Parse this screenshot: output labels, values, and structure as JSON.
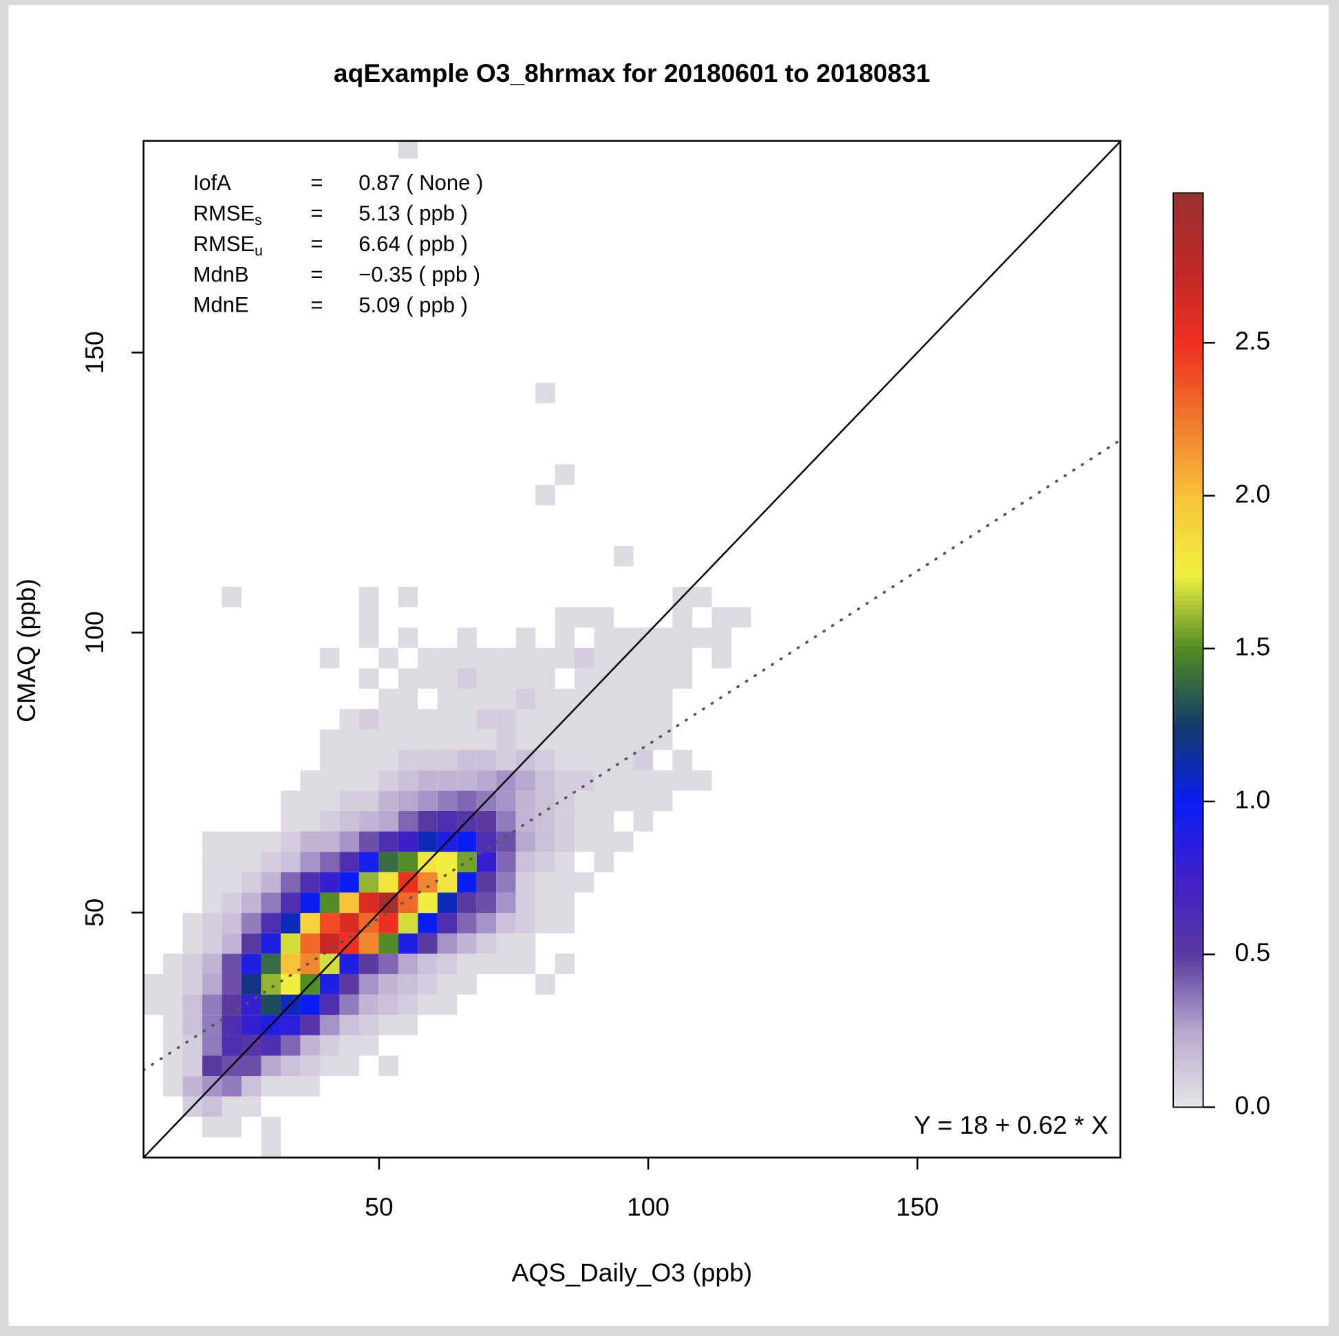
{
  "chart_data": {
    "type": "heatmap",
    "title": "aqExample O3_8hrmax for 20180601 to 20180831",
    "x_label": "AQS_Daily_O3 (ppb)",
    "y_label": "CMAQ (ppb)",
    "xlim": [
      6.25,
      187.7
    ],
    "ylim": [
      6.25,
      187.8
    ],
    "xticks": [
      50,
      100,
      150
    ],
    "yticks": [
      50,
      100,
      150
    ],
    "bin_width": 3.64,
    "x": [
      8.07,
      11.71,
      15.35,
      18.99,
      22.63,
      26.27,
      29.91,
      33.55,
      37.19,
      40.83,
      44.47,
      48.11,
      51.75,
      55.39,
      59.03,
      62.67,
      66.31,
      69.95,
      73.59,
      77.23,
      80.87,
      84.51,
      88.15,
      91.79,
      95.43,
      99.07,
      102.71,
      106.35,
      109.99,
      113.63,
      117.27
    ],
    "y": [
      8.07,
      11.71,
      15.35,
      18.99,
      22.63,
      26.27,
      29.91,
      33.55,
      37.19,
      40.83,
      44.47,
      48.11,
      51.75,
      55.39,
      59.03,
      62.67,
      66.31,
      69.95,
      73.59,
      77.23,
      80.87,
      84.51,
      88.15,
      91.79,
      95.43,
      99.07,
      102.71,
      106.35,
      113.63,
      124.55,
      128.19,
      142.75,
      186.43
    ],
    "z": [
      [
        null,
        null,
        null,
        null,
        null,
        null,
        0.05,
        null,
        null,
        null,
        null,
        null,
        null,
        null,
        null,
        null,
        null,
        null,
        null,
        null,
        null,
        null,
        null,
        null,
        null,
        null,
        null,
        null,
        null,
        null,
        null
      ],
      [
        null,
        null,
        null,
        0.05,
        0.05,
        null,
        0.05,
        null,
        null,
        null,
        null,
        null,
        null,
        null,
        null,
        null,
        null,
        null,
        null,
        null,
        null,
        null,
        null,
        null,
        null,
        null,
        null,
        null,
        null,
        null,
        null
      ],
      [
        null,
        null,
        0.1,
        0.15,
        0.05,
        0.05,
        null,
        null,
        null,
        null,
        null,
        null,
        null,
        null,
        null,
        null,
        null,
        null,
        null,
        null,
        null,
        null,
        null,
        null,
        null,
        null,
        null,
        null,
        null,
        null,
        null
      ],
      [
        null,
        0.05,
        0.2,
        0.3,
        0.35,
        0.15,
        0.05,
        0.05,
        0.05,
        null,
        null,
        null,
        null,
        null,
        null,
        null,
        null,
        null,
        null,
        null,
        null,
        null,
        null,
        null,
        null,
        null,
        null,
        null,
        null,
        null,
        null
      ],
      [
        null,
        0.05,
        0.1,
        0.5,
        0.45,
        0.45,
        0.25,
        0.15,
        0.1,
        0.05,
        0.05,
        null,
        0.05,
        null,
        null,
        null,
        null,
        null,
        null,
        null,
        null,
        null,
        null,
        null,
        null,
        null,
        null,
        null,
        null,
        null,
        null
      ],
      [
        null,
        0.05,
        0.1,
        0.35,
        0.6,
        0.55,
        0.6,
        0.4,
        0.2,
        0.1,
        0.05,
        0.05,
        null,
        null,
        null,
        null,
        null,
        null,
        null,
        null,
        null,
        null,
        null,
        null,
        null,
        null,
        null,
        null,
        null,
        null,
        null
      ],
      [
        null,
        0.05,
        0.15,
        0.35,
        0.6,
        0.8,
        0.9,
        0.85,
        0.55,
        0.3,
        0.15,
        0.1,
        0.05,
        0.05,
        null,
        null,
        null,
        null,
        null,
        null,
        null,
        null,
        null,
        null,
        null,
        null,
        null,
        null,
        null,
        null,
        null
      ],
      [
        0.05,
        0.05,
        0.15,
        0.35,
        0.5,
        0.8,
        1.3,
        1.1,
        1.0,
        0.6,
        0.35,
        0.2,
        0.15,
        0.1,
        0.05,
        0.05,
        null,
        null,
        null,
        null,
        null,
        null,
        null,
        null,
        null,
        null,
        null,
        null,
        null,
        null,
        null
      ],
      [
        0.05,
        0.05,
        0.1,
        0.25,
        0.45,
        1.2,
        1.6,
        1.75,
        1.5,
        0.9,
        0.5,
        0.3,
        0.2,
        0.15,
        0.1,
        0.05,
        0.05,
        null,
        null,
        null,
        0.05,
        null,
        null,
        null,
        null,
        null,
        null,
        null,
        null,
        null,
        null
      ],
      [
        null,
        0.05,
        0.1,
        0.2,
        0.45,
        0.9,
        1.4,
        2.0,
        2.2,
        1.7,
        0.9,
        0.5,
        0.4,
        0.25,
        0.15,
        0.1,
        0.05,
        0.05,
        0.05,
        0.05,
        null,
        0.05,
        null,
        null,
        null,
        null,
        null,
        null,
        null,
        null,
        null
      ],
      [
        null,
        null,
        0.05,
        0.1,
        0.2,
        0.5,
        0.9,
        1.7,
        2.3,
        2.7,
        2.5,
        2.2,
        1.5,
        0.9,
        0.5,
        0.3,
        0.2,
        0.1,
        0.05,
        0.05,
        null,
        null,
        null,
        null,
        null,
        null,
        null,
        null,
        null,
        null,
        null
      ],
      [
        null,
        null,
        0.05,
        0.1,
        0.15,
        0.35,
        0.6,
        1.1,
        1.9,
        2.4,
        2.6,
        2.3,
        2.5,
        1.7,
        1.0,
        0.6,
        0.4,
        0.3,
        0.15,
        0.1,
        0.05,
        0.05,
        null,
        null,
        null,
        null,
        null,
        null,
        null,
        null,
        null
      ],
      [
        null,
        null,
        null,
        0.05,
        0.1,
        0.2,
        0.35,
        0.6,
        1.0,
        1.5,
        2.0,
        2.6,
        2.9,
        2.3,
        1.75,
        1.1,
        0.5,
        0.45,
        0.3,
        0.1,
        0.05,
        0.05,
        null,
        null,
        null,
        null,
        null,
        null,
        null,
        null,
        null
      ],
      [
        null,
        null,
        null,
        0.05,
        0.05,
        0.1,
        0.2,
        0.4,
        0.6,
        0.8,
        1.0,
        1.6,
        1.8,
        2.5,
        2.2,
        1.8,
        1.0,
        0.5,
        0.35,
        0.1,
        0.05,
        0.05,
        0.05,
        null,
        null,
        null,
        null,
        null,
        null,
        null,
        null
      ],
      [
        null,
        null,
        null,
        0.05,
        0.05,
        0.05,
        0.1,
        0.15,
        0.3,
        0.4,
        0.6,
        0.95,
        1.4,
        1.5,
        1.8,
        1.75,
        1.55,
        0.8,
        0.4,
        0.15,
        0.1,
        0.05,
        null,
        0.05,
        null,
        null,
        null,
        null,
        null,
        null,
        null
      ],
      [
        null,
        null,
        null,
        0.05,
        0.05,
        0.05,
        0.05,
        0.1,
        0.2,
        0.2,
        0.3,
        0.45,
        0.6,
        0.75,
        1.1,
        0.9,
        1.0,
        0.6,
        0.45,
        0.25,
        0.15,
        0.1,
        0.05,
        0.05,
        0.05,
        null,
        null,
        null,
        null,
        null,
        null
      ],
      [
        null,
        null,
        null,
        null,
        null,
        null,
        null,
        0.05,
        0.05,
        0.1,
        0.15,
        0.2,
        0.25,
        0.4,
        0.5,
        0.6,
        0.55,
        0.5,
        0.35,
        0.2,
        0.15,
        0.1,
        0.05,
        0.05,
        null,
        0.05,
        null,
        null,
        null,
        null,
        null
      ],
      [
        null,
        null,
        null,
        null,
        null,
        null,
        null,
        0.05,
        0.05,
        0.05,
        0.1,
        0.1,
        0.2,
        0.25,
        0.3,
        0.35,
        0.4,
        0.35,
        0.3,
        0.2,
        0.15,
        0.1,
        0.05,
        0.05,
        0.05,
        0.05,
        0.05,
        null,
        null,
        null,
        null
      ],
      [
        null,
        null,
        null,
        null,
        null,
        null,
        null,
        null,
        0.05,
        0.05,
        0.05,
        0.05,
        0.1,
        0.15,
        0.2,
        0.2,
        0.2,
        0.25,
        0.3,
        0.25,
        0.15,
        0.1,
        0.1,
        0.05,
        0.05,
        0.05,
        0.05,
        0.05,
        0.05,
        null,
        null
      ],
      [
        null,
        null,
        null,
        null,
        null,
        null,
        null,
        null,
        null,
        0.05,
        0.05,
        0.05,
        0.05,
        0.1,
        0.1,
        0.1,
        0.15,
        0.15,
        0.1,
        0.15,
        0.1,
        0.05,
        0.05,
        0.05,
        0.05,
        0.1,
        null,
        0.05,
        null,
        null,
        null
      ],
      [
        null,
        null,
        null,
        null,
        null,
        null,
        null,
        null,
        null,
        0.05,
        0.05,
        0.05,
        0.05,
        0.05,
        0.05,
        0.05,
        0.05,
        0.05,
        0.1,
        0.05,
        0.05,
        0.05,
        0.05,
        0.05,
        0.05,
        0.05,
        0.05,
        null,
        null,
        null,
        null
      ],
      [
        null,
        null,
        null,
        null,
        null,
        null,
        null,
        null,
        null,
        null,
        0.05,
        0.1,
        0.05,
        0.05,
        0.05,
        0.05,
        0.05,
        0.1,
        0.1,
        0.05,
        0.05,
        0.05,
        0.05,
        0.05,
        0.05,
        0.05,
        0.05,
        null,
        null,
        null,
        null
      ],
      [
        null,
        null,
        null,
        null,
        null,
        null,
        null,
        null,
        null,
        null,
        null,
        null,
        0.05,
        0.05,
        null,
        0.05,
        0.05,
        0.05,
        0.05,
        0.1,
        0.05,
        0.05,
        0.05,
        0.05,
        0.05,
        0.05,
        0.05,
        null,
        null,
        null,
        null
      ],
      [
        null,
        null,
        null,
        null,
        null,
        null,
        null,
        null,
        null,
        null,
        null,
        0.05,
        null,
        0.05,
        0.05,
        0.05,
        0.1,
        0.05,
        0.05,
        0.05,
        0.05,
        null,
        0.05,
        0.05,
        0.05,
        0.05,
        0.05,
        0.05,
        null,
        null,
        null
      ],
      [
        null,
        null,
        null,
        null,
        null,
        null,
        null,
        null,
        null,
        0.05,
        null,
        null,
        0.05,
        null,
        0.05,
        0.05,
        0.05,
        0.05,
        0.05,
        0.05,
        0.05,
        0.05,
        0.1,
        0.05,
        0.05,
        0.05,
        0.05,
        0.05,
        null,
        0.05,
        null
      ],
      [
        null,
        null,
        null,
        null,
        null,
        null,
        null,
        null,
        null,
        null,
        null,
        0.05,
        null,
        0.05,
        null,
        null,
        0.05,
        null,
        null,
        0.05,
        null,
        0.05,
        null,
        0.05,
        0.05,
        0.05,
        0.05,
        0.05,
        0.05,
        0.05,
        null
      ],
      [
        null,
        null,
        null,
        null,
        null,
        null,
        null,
        null,
        null,
        null,
        null,
        0.05,
        null,
        null,
        null,
        null,
        null,
        null,
        null,
        null,
        null,
        0.05,
        0.05,
        0.05,
        null,
        null,
        null,
        0.05,
        null,
        0.05,
        0.05
      ],
      [
        null,
        null,
        null,
        null,
        0.05,
        null,
        null,
        null,
        null,
        null,
        null,
        0.05,
        null,
        0.05,
        null,
        null,
        null,
        null,
        null,
        null,
        null,
        null,
        null,
        null,
        null,
        null,
        null,
        0.05,
        0.05,
        null,
        null
      ],
      [
        null,
        null,
        null,
        null,
        null,
        null,
        null,
        null,
        null,
        null,
        null,
        null,
        null,
        null,
        null,
        null,
        null,
        null,
        null,
        null,
        null,
        null,
        null,
        null,
        0.05,
        null,
        null,
        null,
        null,
        null,
        null
      ],
      [
        null,
        null,
        null,
        null,
        null,
        null,
        null,
        null,
        null,
        null,
        null,
        null,
        null,
        null,
        null,
        null,
        null,
        null,
        null,
        null,
        0.05,
        null,
        null,
        null,
        null,
        null,
        null,
        null,
        null,
        null,
        null
      ],
      [
        null,
        null,
        null,
        null,
        null,
        null,
        null,
        null,
        null,
        null,
        null,
        null,
        null,
        null,
        null,
        null,
        null,
        null,
        null,
        null,
        null,
        0.05,
        null,
        null,
        null,
        null,
        null,
        null,
        null,
        null,
        null
      ],
      [
        null,
        null,
        null,
        null,
        null,
        null,
        null,
        null,
        null,
        null,
        null,
        null,
        null,
        null,
        null,
        null,
        null,
        null,
        null,
        null,
        0.05,
        null,
        null,
        null,
        null,
        null,
        null,
        null,
        null,
        null,
        null
      ],
      [
        null,
        null,
        null,
        null,
        null,
        null,
        null,
        null,
        null,
        null,
        null,
        null,
        null,
        0.05,
        null,
        null,
        null,
        null,
        null,
        null,
        null,
        null,
        null,
        null,
        null,
        null,
        null,
        null,
        null,
        null,
        null
      ]
    ],
    "colorbar": {
      "lim": [
        0,
        2.99
      ],
      "ticks": [
        {
          "value": 0,
          "label": "0.0"
        },
        {
          "value": 0.5,
          "label": "0.5"
        },
        {
          "value": 1,
          "label": "1.0"
        },
        {
          "value": 1.5,
          "label": "1.5"
        },
        {
          "value": 2,
          "label": "2.0"
        },
        {
          "value": 2.5,
          "label": "2.5"
        }
      ],
      "colors": [
        "#e6e6e6",
        "#b8a8d0",
        "#5a3aa0",
        "#4020c8",
        "#0a1ef5",
        "#123a6a",
        "#4f8a24",
        "#f0f040",
        "#f8c438",
        "#f07a2c",
        "#f03020",
        "#c02828",
        "#9a3030"
      ]
    },
    "identity_line": true,
    "fit": {
      "label": "Y = 18 + 0.62 * X",
      "intercept": 18,
      "slope": 0.62,
      "color": "#555555"
    },
    "stats_separator": "=",
    "stats": [
      {
        "name": "IofA",
        "value": "0.87 ( None )"
      },
      {
        "name": "RMSE",
        "sub": "s",
        "value": "5.13 ( ppb )"
      },
      {
        "name": "RMSE",
        "sub": "u",
        "value": "6.64 ( ppb )"
      },
      {
        "name": "MdnB",
        "value": "−0.35 ( ppb )"
      },
      {
        "name": "MdnE",
        "value": "5.09 ( ppb )"
      }
    ]
  }
}
